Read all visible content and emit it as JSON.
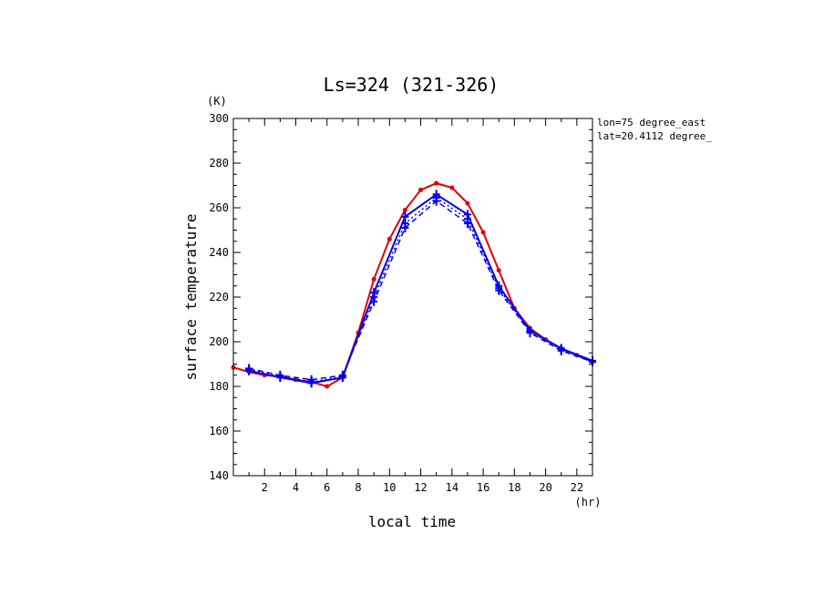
{
  "chart_data": {
    "type": "line",
    "title": "Ls=324 (321-326)",
    "xlabel": "local time",
    "ylabel": "surface temperature",
    "x_unit": "(hr)",
    "y_unit": "(K)",
    "xlim": [
      0,
      23
    ],
    "ylim": [
      140,
      300
    ],
    "x_ticks": [
      2,
      4,
      6,
      8,
      10,
      12,
      14,
      16,
      18,
      20,
      22
    ],
    "y_ticks": [
      140,
      160,
      180,
      200,
      220,
      240,
      260,
      280,
      300
    ],
    "annotations": [
      "lon=75 degree_east",
      "lat=20.4112 degree_"
    ],
    "colors": {
      "red": "#e00000",
      "blue": "#0000ee"
    },
    "series": [
      {
        "color": "#e00000",
        "style": "solid",
        "marker": "dot",
        "x": [
          0,
          1,
          2,
          3,
          4,
          5,
          6,
          7,
          8,
          9,
          10,
          11,
          12,
          13,
          14,
          15,
          16,
          17,
          18,
          19,
          20,
          21,
          22,
          23
        ],
        "y": [
          188.5,
          186.5,
          185,
          184.5,
          183,
          182,
          180,
          184,
          204,
          228,
          246,
          259,
          268,
          271,
          269,
          262,
          249,
          232,
          215,
          206,
          201,
          197,
          194,
          191
        ]
      },
      {
        "color": "#0000ee",
        "style": "solid",
        "marker": "cross",
        "x": [
          1,
          3,
          5,
          7,
          9,
          11,
          13,
          15,
          17,
          19,
          21,
          23
        ],
        "y": [
          187,
          184,
          181.5,
          184,
          222,
          256,
          266,
          257,
          225,
          205,
          197,
          191.5
        ]
      },
      {
        "color": "#0000ee",
        "style": "dashed",
        "marker": "cross",
        "x": [
          1,
          3,
          5,
          7,
          9,
          11,
          13,
          15,
          17,
          19,
          21,
          23
        ],
        "y": [
          188,
          185,
          183,
          185,
          218,
          251,
          263,
          253,
          223,
          204,
          196,
          191
        ]
      },
      {
        "color": "#0000ee",
        "style": "dotted",
        "marker": "cross",
        "x": [
          1,
          3,
          5,
          7,
          9,
          11,
          13,
          15,
          17,
          19,
          21,
          23
        ],
        "y": [
          187.5,
          184.5,
          182,
          184.5,
          220,
          253,
          264.5,
          255,
          224,
          204.5,
          196.5,
          191
        ]
      }
    ]
  }
}
